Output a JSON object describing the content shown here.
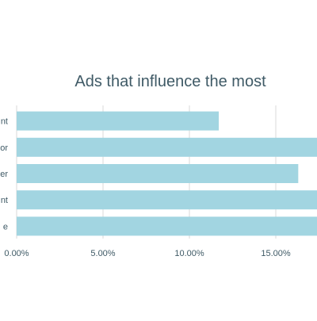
{
  "chart_data": {
    "type": "bar",
    "orientation": "horizontal",
    "title": "Ads that influence the most",
    "categories": [
      "nt",
      "or",
      "er",
      "nt",
      "e"
    ],
    "values": [
      11.7,
      17.6,
      16.3,
      17.8,
      17.9
    ],
    "xlim": [
      0,
      20
    ],
    "x_ticks": [
      "0.00%",
      "5.00%",
      "10.00%",
      "15.00%"
    ],
    "xlabel": "",
    "ylabel": "",
    "grid": "vertical",
    "legend": "none",
    "colors": {
      "bar": "#a2d5e1",
      "grid": "#d9d9d9",
      "text": "#3f5a66"
    }
  }
}
